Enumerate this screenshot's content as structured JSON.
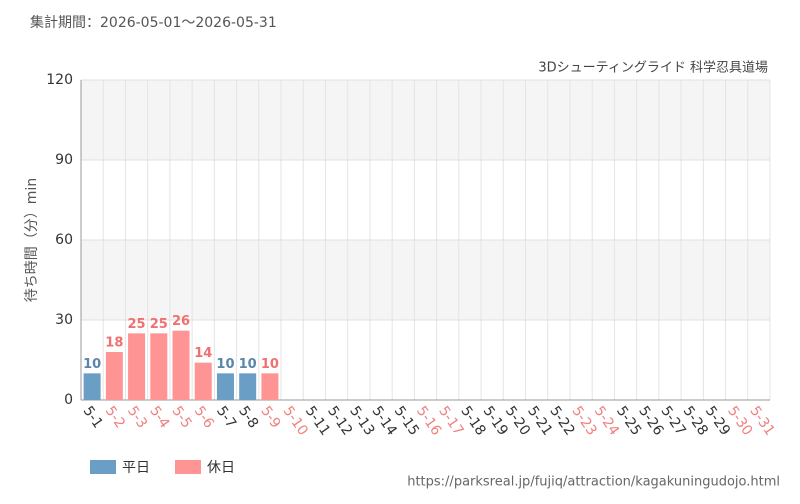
{
  "chart_data": {
    "type": "bar",
    "period": "集計期間：2026-05-01～2026-05-31",
    "title": "3Dシューティングライド 科学忍具道場",
    "y_label": "待ち時間（分）min",
    "source": "https://parksreal.jp/fujiq/attraction/kagakuningudojo.html",
    "categories": [
      "5-1",
      "5-2",
      "5-3",
      "5-4",
      "5-5",
      "5-6",
      "5-7",
      "5-8",
      "5-9",
      "5-10",
      "5-11",
      "5-12",
      "5-13",
      "5-14",
      "5-15",
      "5-16",
      "5-17",
      "5-18",
      "5-19",
      "5-20",
      "5-21",
      "5-22",
      "5-23",
      "5-24",
      "5-25",
      "5-26",
      "5-27",
      "5-28",
      "5-29",
      "5-30",
      "5-31"
    ],
    "category_colors": [
      "#333333",
      "#f08080",
      "#f08080",
      "#f08080",
      "#f08080",
      "#f08080",
      "#333333",
      "#333333",
      "#f08080",
      "#f08080",
      "#333333",
      "#333333",
      "#333333",
      "#333333",
      "#333333",
      "#f08080",
      "#f08080",
      "#333333",
      "#333333",
      "#333333",
      "#333333",
      "#333333",
      "#f08080",
      "#f08080",
      "#333333",
      "#333333",
      "#333333",
      "#333333",
      "#333333",
      "#f08080",
      "#f08080"
    ],
    "series": [
      {
        "name": "平日",
        "color": "#6a9ec4",
        "label_color": "#5a86aa",
        "values": [
          10,
          null,
          null,
          null,
          null,
          null,
          10,
          10,
          null,
          null,
          null,
          null,
          null,
          null,
          null,
          null,
          null,
          null,
          null,
          null,
          null,
          null,
          null,
          null,
          null,
          null,
          null,
          null,
          null,
          null,
          null
        ]
      },
      {
        "name": "休日",
        "color": "#ff9494",
        "label_color": "#f07070",
        "values": [
          null,
          18,
          25,
          25,
          26,
          14,
          null,
          null,
          10,
          null,
          null,
          null,
          null,
          null,
          null,
          null,
          null,
          null,
          null,
          null,
          null,
          null,
          null,
          null,
          null,
          null,
          null,
          null,
          null,
          null,
          null
        ]
      }
    ],
    "ylim": [
      0,
      120
    ],
    "yticks": [
      0,
      30,
      60,
      90,
      120
    ],
    "grid": true
  }
}
